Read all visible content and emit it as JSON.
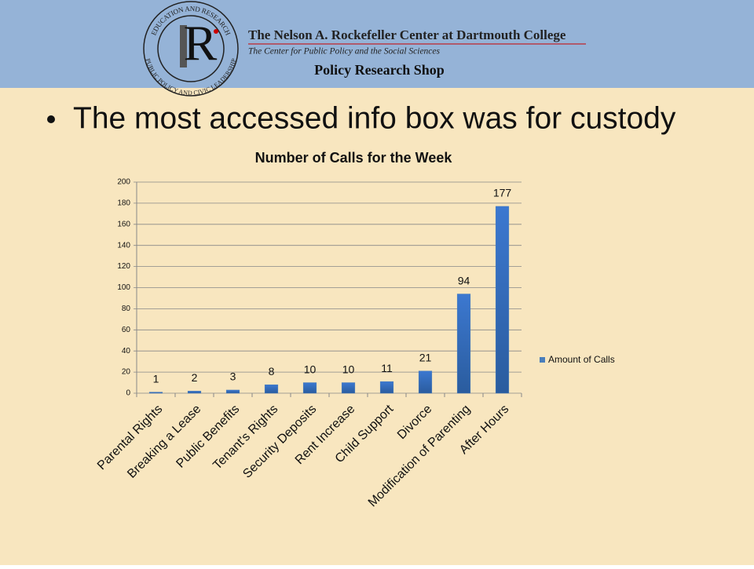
{
  "header": {
    "ring_top": "EDUCATION AND RESEARCH",
    "ring_bottom": "PUBLIC POLICY AND CIVIC LEADERSHIP",
    "logo_letter": "R",
    "institution": "The Nelson A. Rockefeller Center at Dartmouth College",
    "tagline": "The Center for Public Policy and the Social Sciences",
    "shop": "Policy Research Shop"
  },
  "bullet": "The most accessed info box was for custody",
  "chart_data": {
    "type": "bar",
    "title": "Number of Calls for the Week",
    "categories": [
      "Parental Rights",
      "Breaking a Lease",
      "Public Benefits",
      "Tenant's Rights",
      "Security Deposits",
      "Rent Increase",
      "Child Support",
      "Divorce",
      "Modification of Parenting",
      "After Hours"
    ],
    "series": [
      {
        "name": "Amount of Calls",
        "color": "#4a7ebb",
        "values": [
          1,
          2,
          3,
          8,
          10,
          10,
          11,
          21,
          94,
          177
        ]
      }
    ],
    "ylim": [
      0,
      200
    ],
    "yticks": [
      0,
      20,
      40,
      60,
      80,
      100,
      120,
      140,
      160,
      180,
      200
    ],
    "grid": true,
    "legend": "right",
    "data_labels": true
  }
}
